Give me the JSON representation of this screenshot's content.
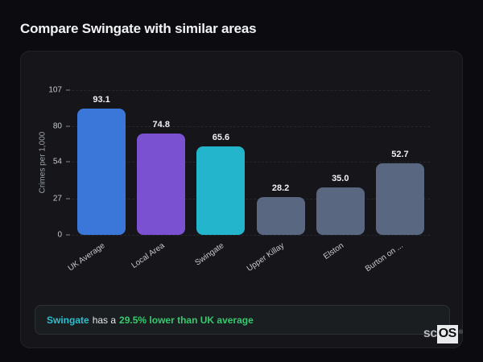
{
  "page": {
    "title": "Compare Swingate with similar areas"
  },
  "chart_data": {
    "type": "bar",
    "title": "Compare Swingate with similar areas",
    "xlabel": "",
    "ylabel": "Crimes per 1,000",
    "categories": [
      "UK Average",
      "Local Area",
      "Swingate",
      "Upper Killay",
      "Elston",
      "Burton on ..."
    ],
    "values": [
      93.1,
      74.8,
      65.6,
      28.2,
      35.0,
      52.7
    ],
    "value_labels": [
      "93.1",
      "74.8",
      "65.6",
      "28.2",
      "35.0",
      "52.7"
    ],
    "bar_colors": [
      "#3b76d9",
      "#7a52d1",
      "#22b5cc",
      "#5a6780",
      "#5a6780",
      "#5a6780"
    ],
    "yticks": [
      0,
      27,
      54,
      80,
      107
    ],
    "ylim": [
      0,
      107
    ],
    "grid": "dashed horizontal",
    "legend_position": "none"
  },
  "insight": {
    "area_name": "Swingate",
    "middle_text": "has a",
    "highlight_text": "29.5% lower than UK average",
    "area_color": "#29c0cf",
    "highlight_color": "#36c96e"
  },
  "logo": {
    "prefix": "sc",
    "suffix": "OS",
    "registered_mark": "®"
  }
}
